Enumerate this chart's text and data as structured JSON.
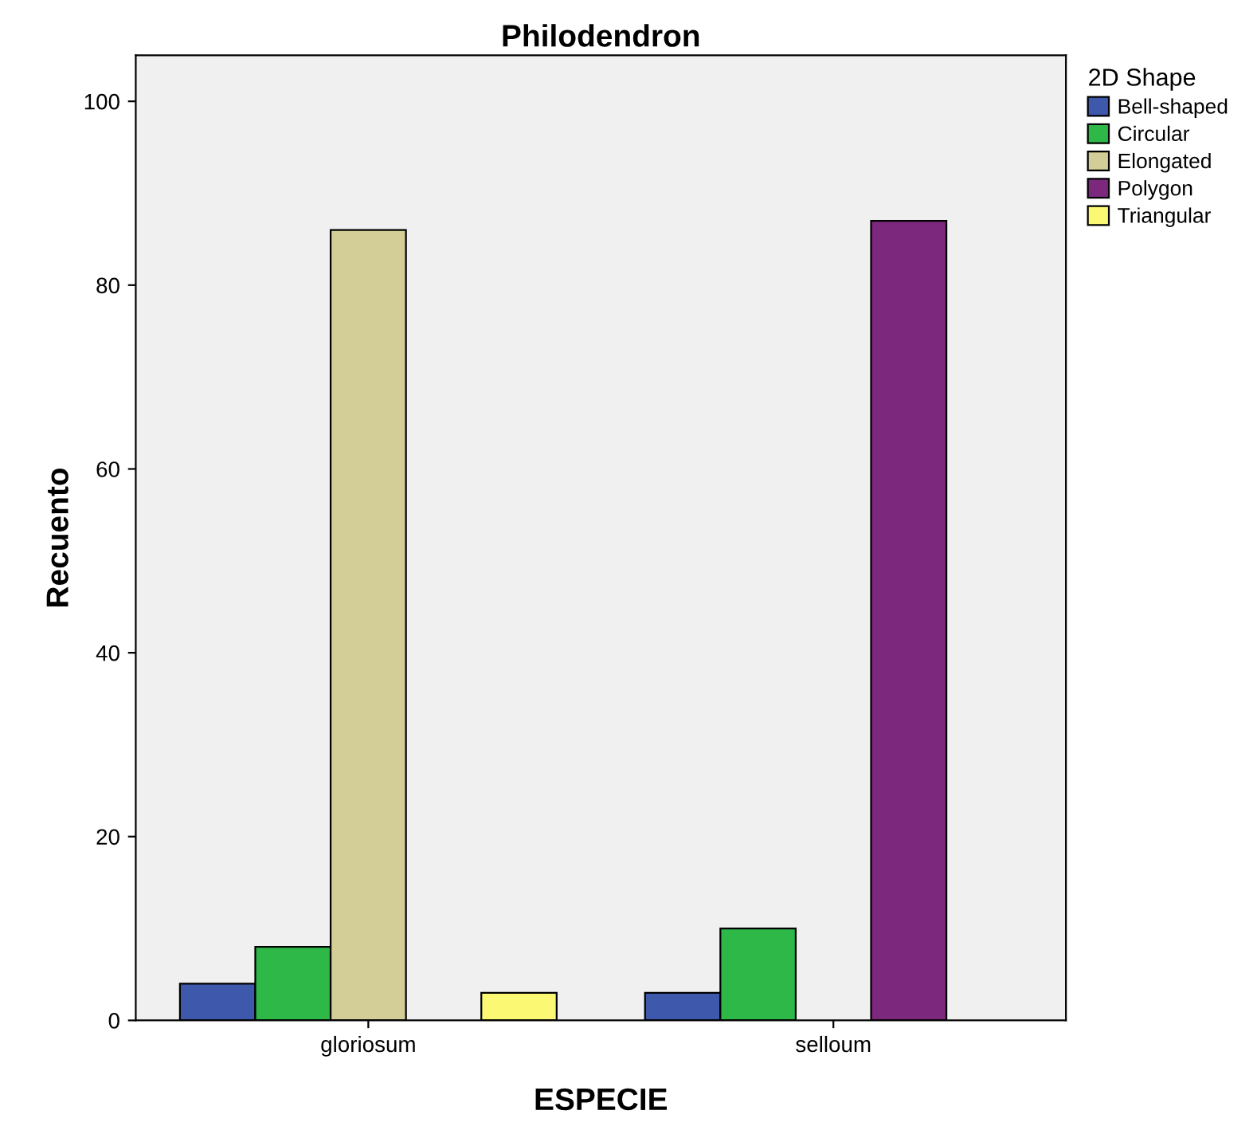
{
  "chart_data": {
    "type": "bar",
    "title": "Philodendron",
    "xlabel": "ESPECIE",
    "ylabel": "Recuento",
    "legend_title": "2D Shape",
    "categories": [
      "gloriosum",
      "selloum"
    ],
    "series": [
      {
        "name": "Bell-shaped",
        "color": "#3e58ac",
        "values": [
          4,
          3
        ]
      },
      {
        "name": "Circular",
        "color": "#2eb848",
        "values": [
          8,
          10
        ]
      },
      {
        "name": "Elongated",
        "color": "#d3ce97",
        "values": [
          86,
          null
        ]
      },
      {
        "name": "Polygon",
        "color": "#7c287c",
        "values": [
          null,
          87
        ]
      },
      {
        "name": "Triangular",
        "color": "#fbf873",
        "values": [
          3,
          null
        ]
      }
    ],
    "ylim": [
      0,
      105
    ],
    "yticks": [
      0,
      20,
      40,
      60,
      80,
      100
    ],
    "grid": false,
    "legend": "top right"
  }
}
